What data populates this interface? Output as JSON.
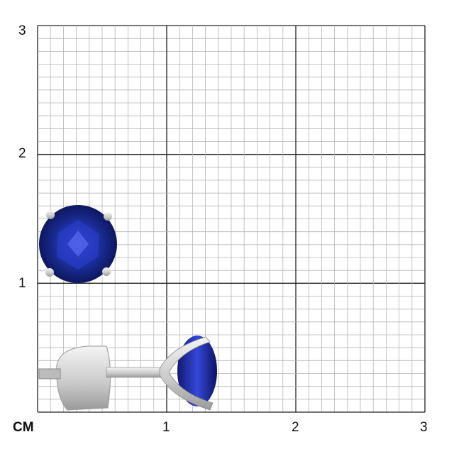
{
  "scale": {
    "unit_label": "CM",
    "x_ticks": [
      "1",
      "2",
      "3"
    ],
    "y_ticks": [
      "1",
      "2",
      "3"
    ],
    "subdivisions_per_unit": 10,
    "range_cm": [
      0,
      3
    ]
  },
  "product": {
    "stone_color": "#1a2f9e",
    "metal_color": "#d8d8d8"
  }
}
